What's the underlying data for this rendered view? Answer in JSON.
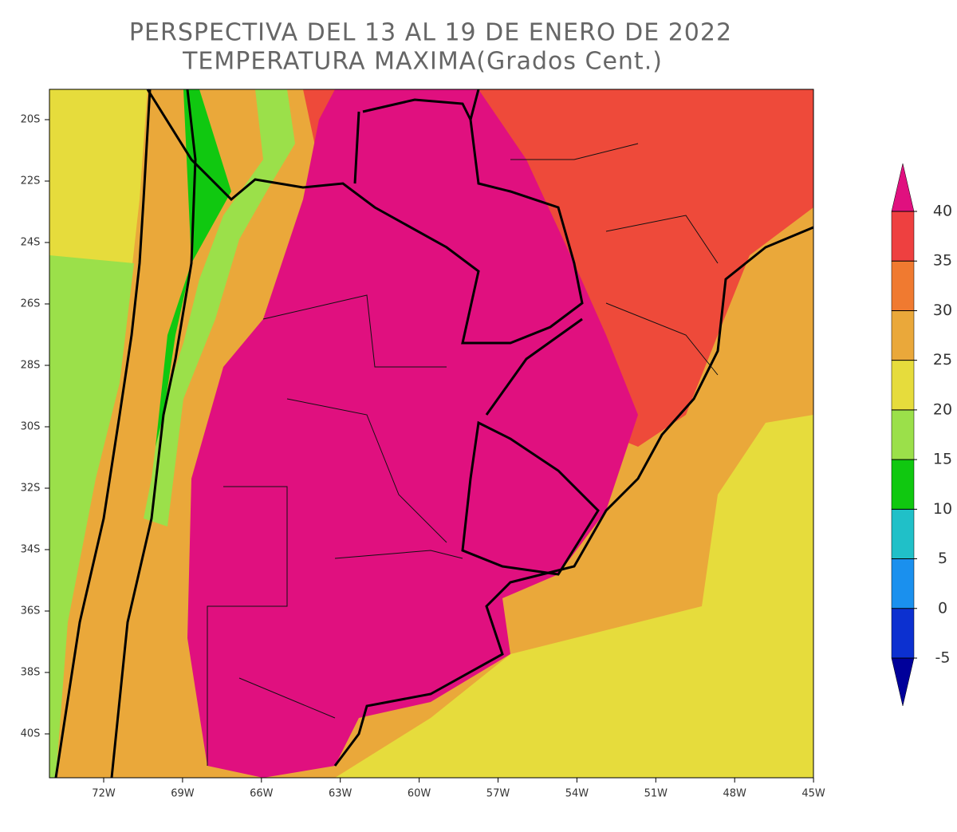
{
  "title": [
    "PERSPECTIVA DEL 13 AL 19 DE ENERO DE 2022",
    "TEMPERATURA MAXIMA(Grados Cent.)"
  ],
  "lat_labels": [
    "20S",
    "22S",
    "24S",
    "26S",
    "28S",
    "30S",
    "32S",
    "34S",
    "36S",
    "38S",
    "40S"
  ],
  "lon_labels": [
    "72W",
    "69W",
    "66W",
    "63W",
    "60W",
    "57W",
    "54W",
    "51W",
    "48W",
    "45W"
  ],
  "colorbar": {
    "ticks": [
      -5,
      0,
      5,
      10,
      15,
      20,
      25,
      30,
      35,
      40
    ],
    "colors": [
      "#0c30d0",
      "#1a90ee",
      "#20c0c8",
      "#10c810",
      "#9be04a",
      "#e6dc3c",
      "#eaa83a",
      "#f07a30",
      "#ee4040"
    ],
    "under_color": "#00009a",
    "over_color": "#e0107f"
  }
}
